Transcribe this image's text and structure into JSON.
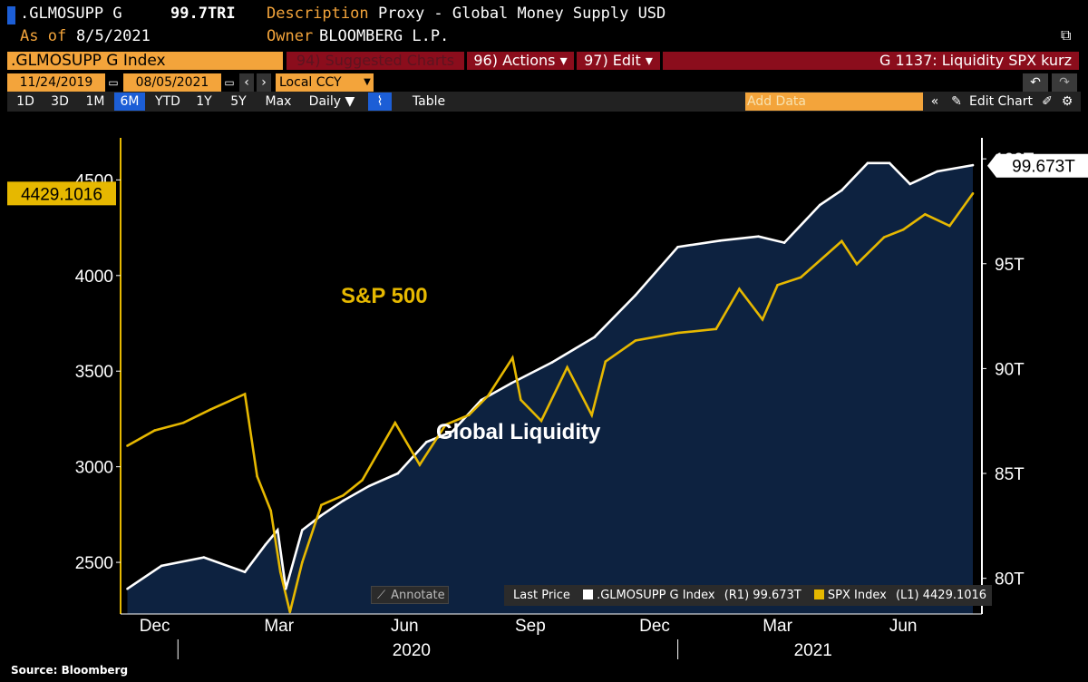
{
  "header": {
    "ticker": ".GLMOSUPP G",
    "price": "99.7TRI",
    "description_label": "Description",
    "description_value": "Proxy - Global Money Supply USD",
    "asof_label": "As of",
    "asof_value": "8/5/2021",
    "owner_label": "Owner",
    "owner_value": "BLOOMBERG L.P."
  },
  "bar1": {
    "security": ".GLMOSUPP G Index",
    "suggested": "94) Suggested Charts",
    "actions": "96) Actions ▾",
    "edit": "97) Edit ▾",
    "chart_id": "G 1137: Liquidity SPX kurz"
  },
  "bar2": {
    "start_date": "11/24/2019",
    "end_date": "08/05/2021",
    "currency": "Local CCY"
  },
  "toolbar": {
    "periods": [
      "1D",
      "3D",
      "1M",
      "6M",
      "YTD",
      "1Y",
      "5Y",
      "Max"
    ],
    "active_period": "6M",
    "frequency": "Daily ▼",
    "table": "Table",
    "add_data": "Add Data",
    "edit_chart": "Edit Chart"
  },
  "annotate_label": "Annotate",
  "source": "Source: Bloomberg",
  "colors": {
    "spx": "#e6b800",
    "glm": "#ffffff",
    "area": "#0d2240",
    "bar_orange": "#f3a43b",
    "bar_red": "#8b0d1c"
  },
  "chart_data": {
    "type": "line",
    "annotations": {
      "spx_label": "S&P 500",
      "glm_label": "Global Liquidity"
    },
    "left_axis": {
      "ticks": [
        2500,
        3000,
        3500,
        4000,
        4500
      ],
      "ylim": [
        2230,
        4720
      ]
    },
    "right_axis": {
      "ticks": [
        "80T",
        "85T",
        "90T",
        "95T",
        "100T"
      ],
      "values": [
        80,
        85,
        90,
        95,
        100
      ],
      "ylim": [
        78.3,
        101.0
      ]
    },
    "x_labels": [
      "Dec",
      "Mar",
      "Jun",
      "Sep",
      "Dec",
      "Mar",
      "Jun"
    ],
    "year_labels": [
      "2020",
      "2021"
    ],
    "x_range": [
      "2019-11-24",
      "2021-08-05"
    ],
    "legend": {
      "prefix": "Last Price",
      "items": [
        {
          "name": ".GLMOSUPP G Index",
          "axis": "(R1)",
          "value": "99.673T",
          "color": "#ffffff"
        },
        {
          "name": "SPX Index",
          "axis": "(L1)",
          "value": "4429.1016",
          "color": "#e6b800"
        }
      ]
    },
    "last_values": {
      "spx": "4429.1016",
      "glm": "99.673T"
    },
    "series": [
      {
        "name": "SPX Index",
        "axis": "left",
        "x": [
          "2019-11-25",
          "2019-12-15",
          "2020-01-05",
          "2020-01-25",
          "2020-02-19",
          "2020-02-28",
          "2020-03-09",
          "2020-03-16",
          "2020-03-23",
          "2020-04-01",
          "2020-04-15",
          "2020-05-01",
          "2020-05-15",
          "2020-06-08",
          "2020-06-26",
          "2020-07-15",
          "2020-08-01",
          "2020-08-15",
          "2020-09-02",
          "2020-09-08",
          "2020-09-23",
          "2020-10-12",
          "2020-10-30",
          "2020-11-09",
          "2020-12-01",
          "2021-01-01",
          "2021-01-29",
          "2021-02-15",
          "2021-03-04",
          "2021-03-15",
          "2021-04-01",
          "2021-05-01",
          "2021-05-12",
          "2021-06-01",
          "2021-06-15",
          "2021-07-01",
          "2021-07-19",
          "2021-08-05"
        ],
        "values": [
          3110,
          3190,
          3230,
          3300,
          3380,
          2950,
          2770,
          2450,
          2240,
          2500,
          2800,
          2850,
          2930,
          3230,
          3010,
          3220,
          3270,
          3370,
          3570,
          3350,
          3240,
          3520,
          3270,
          3550,
          3660,
          3700,
          3720,
          3930,
          3770,
          3950,
          3990,
          4180,
          4060,
          4200,
          4240,
          4320,
          4260,
          4429
        ]
      },
      {
        "name": ".GLMOSUPP G Index",
        "axis": "right",
        "x": [
          "2019-11-25",
          "2019-12-20",
          "2020-01-20",
          "2020-02-19",
          "2020-03-05",
          "2020-03-14",
          "2020-03-20",
          "2020-04-01",
          "2020-04-15",
          "2020-05-01",
          "2020-05-20",
          "2020-06-10",
          "2020-07-01",
          "2020-07-20",
          "2020-08-10",
          "2020-09-01",
          "2020-10-01",
          "2020-11-01",
          "2020-12-01",
          "2021-01-01",
          "2021-02-01",
          "2021-03-01",
          "2021-03-20",
          "2021-04-15",
          "2021-05-01",
          "2021-05-20",
          "2021-06-05",
          "2021-06-20",
          "2021-07-10",
          "2021-08-05"
        ],
        "values": [
          79.5,
          80.6,
          81.0,
          80.3,
          81.6,
          82.3,
          79.5,
          82.3,
          83.0,
          83.7,
          84.4,
          85.0,
          86.5,
          87.0,
          88.5,
          89.3,
          90.3,
          91.5,
          93.5,
          95.8,
          96.1,
          96.3,
          96.0,
          97.8,
          98.5,
          99.8,
          99.8,
          98.8,
          99.4,
          99.7
        ]
      }
    ]
  }
}
